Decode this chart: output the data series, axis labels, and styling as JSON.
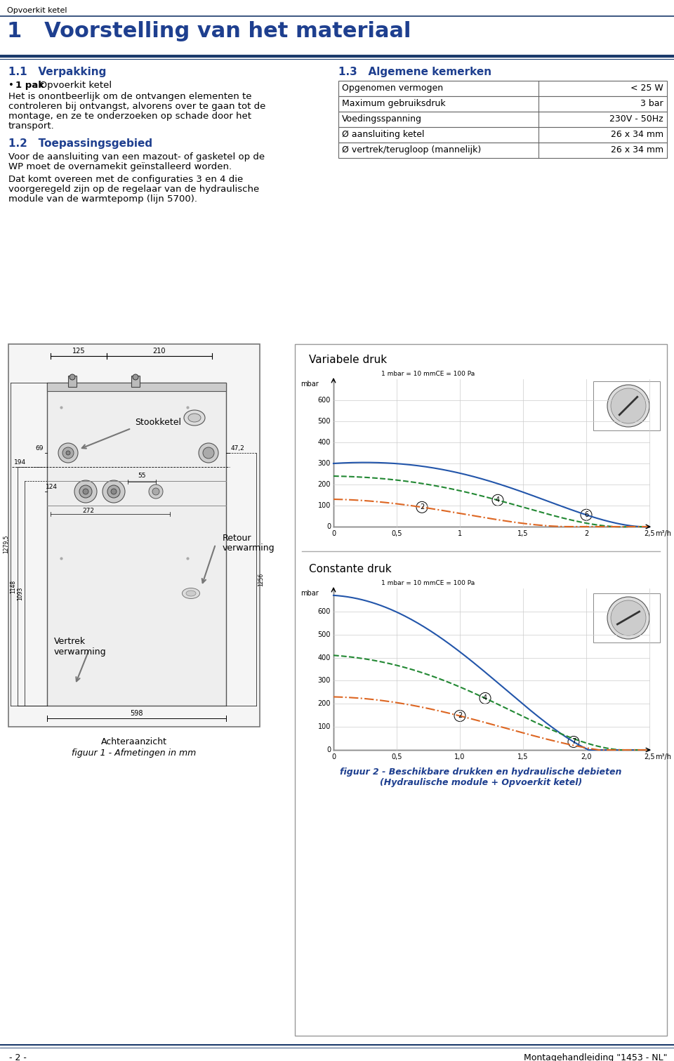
{
  "page_header": "Opvoerkit ketel",
  "main_title": "1   Voorstelling van het materiaal",
  "section1_title": "1.1   Verpakking",
  "section1_bullet_bold": "1 pak",
  "section1_bullet_rest": ": Opvoerkit ketel",
  "section1_text": "Het is onontbeerlijk om de ontvangen elementen te controleren bij ontvangst, alvorens over te gaan tot de montage, en ze te onderzoeken op schade door het transport.",
  "section2_title": "1.2   Toepassingsgebied",
  "section2_text1": "Voor de aansluiting van een mazout- of gasketel op de WP moet de overnamekit  geïnstalleerd worden.",
  "section2_text2a": "Dat komt overeen met de configuraties ",
  "section2_text2b": "3",
  "section2_text2c": " en ",
  "section2_text2d": "4",
  "section2_text2e": " die voorgeregeld zijn op de regelaar van de hydraulische module van de warmtepomp (lijn 5700).",
  "section3_title": "1.3   Algemene kemerken",
  "table_rows": [
    [
      "Opgenomen vermogen",
      "< 25 W"
    ],
    [
      "Maximum gebruiksdruk",
      "3 bar"
    ],
    [
      "Voedingsspanning",
      "230V - 50Hz"
    ],
    [
      "Ø aansluiting ketel",
      "26 x 34 mm"
    ],
    [
      "Ø vertrek/terugloop (mannelijk)",
      "26 x 34 mm"
    ]
  ],
  "fig1_caption": "figuur 1 - Afmetingen in mm",
  "fig2_caption_line1": "figuur 2 - Beschikbare drukken en hydraulische debieten",
  "fig2_caption_line2": "(Hydraulische module + Opvoerkit ketel)",
  "footer_left": "- 2 -",
  "footer_right": "Montagehandleiding \"1453 - NL\"",
  "blue_dark": "#1a3a6b",
  "blue_title": "#1e3f8f",
  "black": "#000000",
  "white": "#ffffff",
  "bg": "#ffffff",
  "curve_blue": "#2255aa",
  "curve_green": "#228833",
  "curve_orange": "#dd6622"
}
